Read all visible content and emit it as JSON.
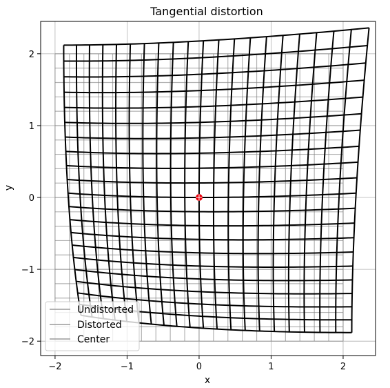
{
  "chart_data": {
    "type": "line",
    "title": "Tangential distortion",
    "xlabel": "x",
    "ylabel": "y",
    "xlim": [
      -2.2,
      2.45
    ],
    "ylim": [
      -2.2,
      2.45
    ],
    "xticks": [
      -2,
      -1,
      0,
      1,
      2
    ],
    "yticks": [
      -2,
      -1,
      0,
      1,
      2
    ],
    "xtick_labels": [
      "−2",
      "−1",
      "0",
      "1",
      "2"
    ],
    "ytick_labels": [
      "−2",
      "−1",
      "0",
      "1",
      "2"
    ],
    "grid": true,
    "legend_position": "lower-left",
    "grid_range": [
      -2,
      2
    ],
    "grid_lines": 21,
    "distortion": {
      "p1": 0.015,
      "p2": 0.015
    },
    "center": {
      "x": 0,
      "y": 0
    },
    "series": [
      {
        "name": "Undistorted",
        "color": "#808080",
        "linewidth": 1.2
      },
      {
        "name": "Distorted",
        "color": "#000000",
        "linewidth": 2.0
      },
      {
        "name": "Center",
        "color": "#e8000b"
      }
    ]
  }
}
